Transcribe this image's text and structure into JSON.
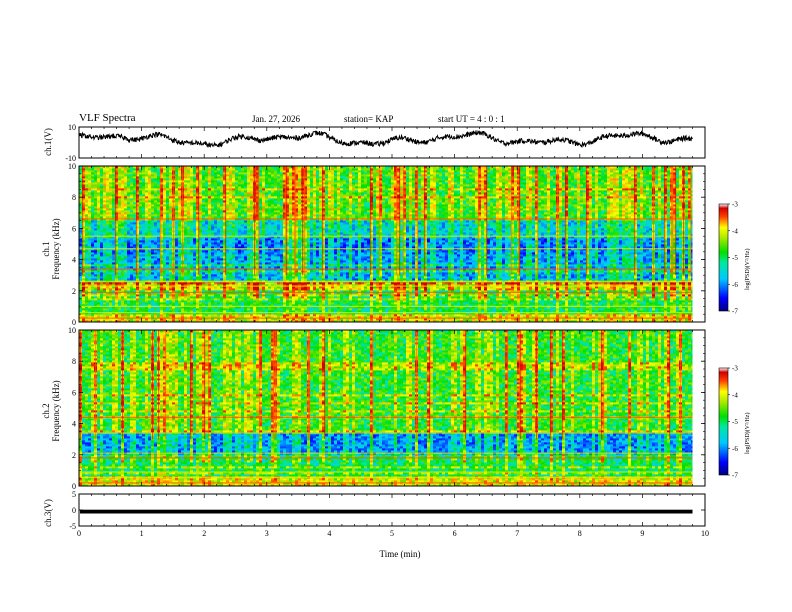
{
  "header": {
    "title": "VLF Spectra",
    "date": "Jan. 27, 2026",
    "station": "station= KAP",
    "start_ut": "start  UT =  4 : 0 : 1"
  },
  "labels": {
    "panel1_ylabel": "ch.1(V)",
    "panel2_ylabel_line1": "ch.1",
    "panel2_ylabel_line2": "Frequency (kHz)",
    "panel3_ylabel_line1": "ch.2",
    "panel3_ylabel_line2": "Frequency (kHz)",
    "panel4_ylabel": "ch.3(V)",
    "xlabel": "Time (min)",
    "colorbar_label": "log(PSD)(V²/Hz)"
  },
  "colors": {
    "waveform": "#000000",
    "low_psd": "#00008c",
    "mid_psd": "#00e000",
    "high_psd": "#d00000"
  },
  "chart_data": [
    {
      "type": "line",
      "panel": "ch1-waveform",
      "ylabel": "ch.1(V)",
      "ylim": [
        -10,
        10
      ],
      "yticks": [
        "10",
        "-10"
      ],
      "xlim": [
        0,
        10
      ],
      "note": "noisy waveform oscillating roughly between -3 and 7 V, ending near 9.8 min"
    },
    {
      "type": "heatmap",
      "panel": "ch1-spectrogram",
      "ylabel": "Frequency (kHz)",
      "ylim": [
        0,
        10
      ],
      "yticks": [
        "0",
        "2",
        "4",
        "6",
        "8",
        "10"
      ],
      "xlim": [
        0,
        10
      ],
      "data_end_min": 9.8,
      "bands": [
        {
          "from_khz": 0.0,
          "to_khz": 0.5,
          "level": -4.5
        },
        {
          "from_khz": 0.5,
          "to_khz": 2.0,
          "level": -5.3
        },
        {
          "from_khz": 2.0,
          "to_khz": 2.5,
          "level": -4.6
        },
        {
          "from_khz": 2.5,
          "to_khz": 3.4,
          "level": -5.9
        },
        {
          "from_khz": 3.4,
          "to_khz": 4.4,
          "level": -6.0
        },
        {
          "from_khz": 4.4,
          "to_khz": 5.4,
          "level": -6.1
        },
        {
          "from_khz": 5.4,
          "to_khz": 6.6,
          "level": -5.7
        },
        {
          "from_khz": 6.6,
          "to_khz": 10.0,
          "level": -5.0
        }
      ],
      "colorbar": {
        "label": "log(PSD)(V²/Hz)",
        "ticks": [
          "-3",
          "-4",
          "-5",
          "-6",
          "-7"
        ],
        "range": [
          -7,
          -3
        ]
      }
    },
    {
      "type": "heatmap",
      "panel": "ch2-spectrogram",
      "ylabel": "Frequency (kHz)",
      "ylim": [
        0,
        10
      ],
      "yticks": [
        "0",
        "2",
        "4",
        "6",
        "8",
        "10"
      ],
      "xlim": [
        0,
        10
      ],
      "data_end_min": 9.8,
      "bands": [
        {
          "from_khz": 0.0,
          "to_khz": 0.6,
          "level": -4.5
        },
        {
          "from_khz": 0.6,
          "to_khz": 2.0,
          "level": -5.3
        },
        {
          "from_khz": 2.0,
          "to_khz": 3.5,
          "level": -6.0
        },
        {
          "from_khz": 3.5,
          "to_khz": 10.0,
          "level": -5.1
        }
      ],
      "colorbar": {
        "label": "log(PSD)(V²/Hz)",
        "ticks": [
          "-3",
          "-4",
          "-5",
          "-6",
          "-7"
        ],
        "range": [
          -7,
          -3
        ]
      }
    },
    {
      "type": "line",
      "panel": "ch3-signal",
      "ylabel": "ch.3(V)",
      "ylim": [
        -5,
        5
      ],
      "yticks": [
        "5",
        "0",
        "-5"
      ],
      "xlim": [
        0,
        10
      ],
      "note": "thick flat band around -0.5 V from 0 to 9.8 min"
    },
    {
      "type": "axis",
      "xlabel": "Time (min)",
      "xticks": [
        "0",
        "1",
        "2",
        "3",
        "4",
        "5",
        "6",
        "7",
        "8",
        "9",
        "10"
      ],
      "xlim": [
        0,
        10
      ]
    }
  ]
}
